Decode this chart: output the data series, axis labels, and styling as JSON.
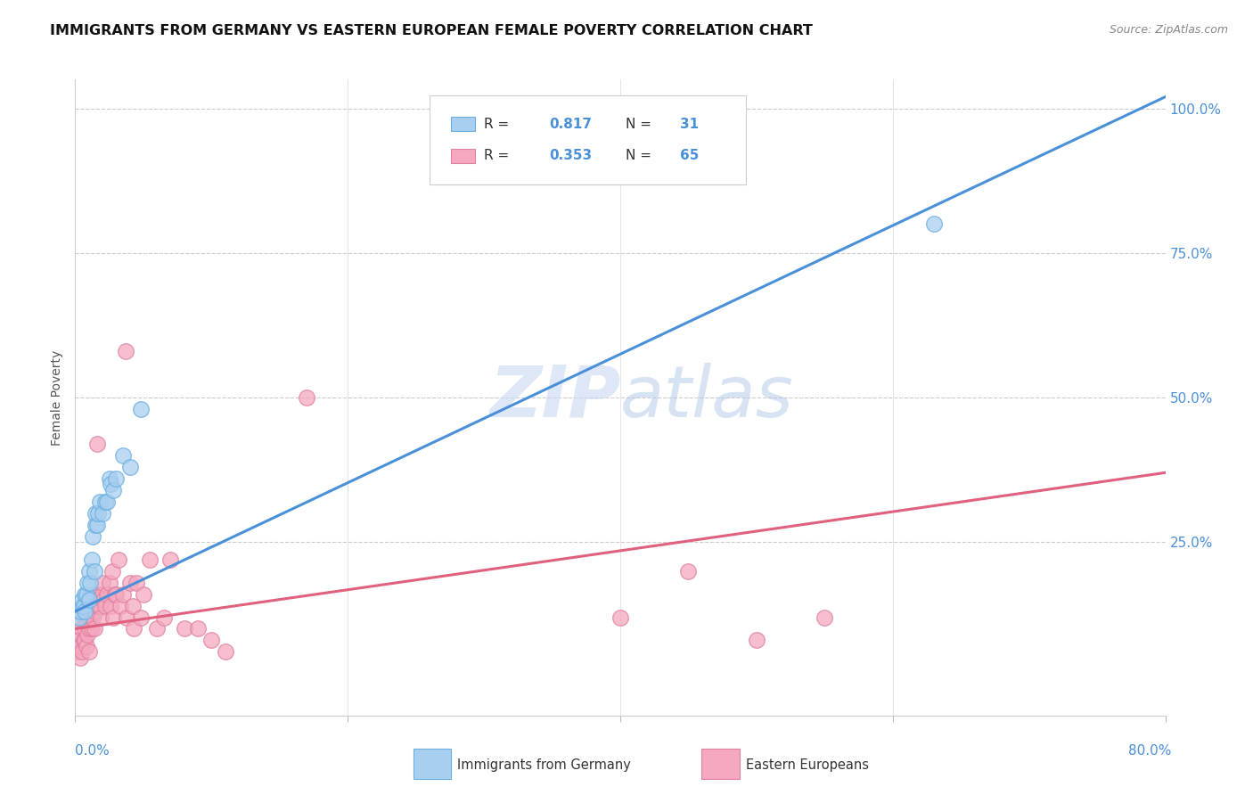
{
  "title": "IMMIGRANTS FROM GERMANY VS EASTERN EUROPEAN FEMALE POVERTY CORRELATION CHART",
  "source": "Source: ZipAtlas.com",
  "ylabel": "Female Poverty",
  "xlim": [
    0.0,
    0.8
  ],
  "ylim": [
    -0.05,
    1.05
  ],
  "ytick_positions": [
    0.0,
    0.25,
    0.5,
    0.75,
    1.0
  ],
  "right_ytick_labels": [
    "",
    "25.0%",
    "50.0%",
    "75.0%",
    "100.0%"
  ],
  "blue_R": 0.817,
  "blue_N": 31,
  "pink_R": 0.353,
  "pink_N": 65,
  "blue_color": "#A8CFF0",
  "pink_color": "#F5A8BE",
  "blue_line_color": "#4A90D9",
  "pink_line_color": "#E06080",
  "blue_edge_color": "#6AAEE0",
  "pink_edge_color": "#E080A0",
  "watermark_color": "#C8D8F0",
  "label_color": "#4A90D9",
  "legend_label_blue": "Immigrants from Germany",
  "legend_label_pink": "Eastern Europeans",
  "blue_line_x0": 0.0,
  "blue_line_y0": 0.13,
  "blue_line_x1": 0.8,
  "blue_line_y1": 1.02,
  "pink_line_x0": 0.0,
  "pink_line_y0": 0.1,
  "pink_line_x1": 0.8,
  "pink_line_y1": 0.37,
  "blue_scatter_x": [
    0.003,
    0.004,
    0.005,
    0.005,
    0.006,
    0.007,
    0.007,
    0.008,
    0.009,
    0.01,
    0.01,
    0.011,
    0.012,
    0.013,
    0.014,
    0.015,
    0.015,
    0.016,
    0.017,
    0.018,
    0.02,
    0.022,
    0.023,
    0.025,
    0.026,
    0.028,
    0.03,
    0.035,
    0.04,
    0.048,
    0.63
  ],
  "blue_scatter_y": [
    0.12,
    0.13,
    0.14,
    0.15,
    0.14,
    0.13,
    0.16,
    0.16,
    0.18,
    0.15,
    0.2,
    0.18,
    0.22,
    0.26,
    0.2,
    0.28,
    0.3,
    0.28,
    0.3,
    0.32,
    0.3,
    0.32,
    0.32,
    0.36,
    0.35,
    0.34,
    0.36,
    0.4,
    0.38,
    0.48,
    0.8
  ],
  "pink_scatter_x": [
    0.002,
    0.003,
    0.004,
    0.004,
    0.005,
    0.005,
    0.006,
    0.006,
    0.007,
    0.007,
    0.008,
    0.008,
    0.009,
    0.009,
    0.01,
    0.01,
    0.011,
    0.012,
    0.012,
    0.013,
    0.013,
    0.014,
    0.015,
    0.015,
    0.016,
    0.016,
    0.017,
    0.018,
    0.018,
    0.019,
    0.02,
    0.02,
    0.021,
    0.022,
    0.023,
    0.025,
    0.026,
    0.027,
    0.028,
    0.029,
    0.03,
    0.032,
    0.033,
    0.035,
    0.037,
    0.038,
    0.04,
    0.042,
    0.043,
    0.045,
    0.048,
    0.05,
    0.055,
    0.06,
    0.065,
    0.07,
    0.08,
    0.09,
    0.1,
    0.11,
    0.17,
    0.4,
    0.45,
    0.5,
    0.55
  ],
  "pink_scatter_y": [
    0.06,
    0.08,
    0.05,
    0.07,
    0.06,
    0.1,
    0.08,
    0.12,
    0.08,
    0.1,
    0.07,
    0.11,
    0.09,
    0.13,
    0.1,
    0.06,
    0.12,
    0.1,
    0.14,
    0.12,
    0.16,
    0.1,
    0.13,
    0.15,
    0.42,
    0.14,
    0.14,
    0.14,
    0.16,
    0.12,
    0.16,
    0.18,
    0.15,
    0.14,
    0.16,
    0.18,
    0.14,
    0.2,
    0.12,
    0.16,
    0.16,
    0.22,
    0.14,
    0.16,
    0.58,
    0.12,
    0.18,
    0.14,
    0.1,
    0.18,
    0.12,
    0.16,
    0.22,
    0.1,
    0.12,
    0.22,
    0.1,
    0.1,
    0.08,
    0.06,
    0.5,
    0.12,
    0.2,
    0.08,
    0.12
  ]
}
